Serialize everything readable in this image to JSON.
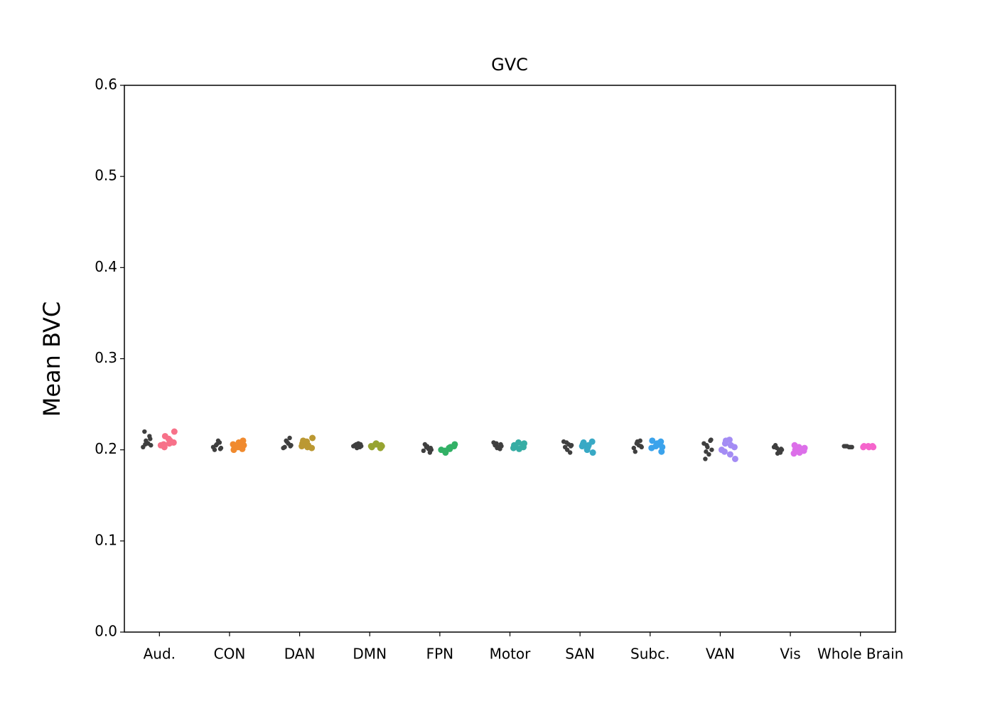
{
  "chart_data": {
    "type": "strip",
    "title": "GVC",
    "y_label": "Mean BVC",
    "categories": [
      "Aud.",
      "CON",
      "DAN",
      "DMN",
      "FPN",
      "Motor",
      "SAN",
      "Subc.",
      "VAN",
      "Vis",
      "Whole Brain"
    ],
    "colors": [
      "#f77189",
      "#f08a2e",
      "#bb9832",
      "#97a431",
      "#32b166",
      "#36ada4",
      "#38a9c5",
      "#3ba3ec",
      "#a48cf4",
      "#dc6fe9",
      "#f565cc"
    ],
    "values": [
      [
        0.205,
        0.21,
        0.215,
        0.22,
        0.207,
        0.203,
        0.208,
        0.212,
        0.206
      ],
      [
        0.202,
        0.205,
        0.208,
        0.2,
        0.21,
        0.203,
        0.206,
        0.201
      ],
      [
        0.205,
        0.21,
        0.213,
        0.203,
        0.207,
        0.202,
        0.209,
        0.204
      ],
      [
        0.204,
        0.206,
        0.203,
        0.205,
        0.207,
        0.204,
        0.202,
        0.206
      ],
      [
        0.2,
        0.203,
        0.197,
        0.206,
        0.201,
        0.199,
        0.204,
        0.202
      ],
      [
        0.204,
        0.207,
        0.201,
        0.205,
        0.203,
        0.208,
        0.202,
        0.206
      ],
      [
        0.205,
        0.208,
        0.197,
        0.203,
        0.206,
        0.209,
        0.2,
        0.204
      ],
      [
        0.203,
        0.207,
        0.21,
        0.198,
        0.205,
        0.202,
        0.209,
        0.204
      ],
      [
        0.2,
        0.205,
        0.21,
        0.19,
        0.195,
        0.207,
        0.203,
        0.211,
        0.198
      ],
      [
        0.2,
        0.202,
        0.197,
        0.205,
        0.199,
        0.203,
        0.196,
        0.201
      ],
      [
        0.203,
        0.204,
        0.203,
        0.204,
        0.203,
        0.204
      ]
    ],
    "ylim": [
      0,
      0.6
    ],
    "yticks": [
      {
        "value": 0,
        "label": "0.0"
      },
      0.1,
      0.2,
      0.3,
      0.4,
      0.5,
      0.6
    ]
  }
}
